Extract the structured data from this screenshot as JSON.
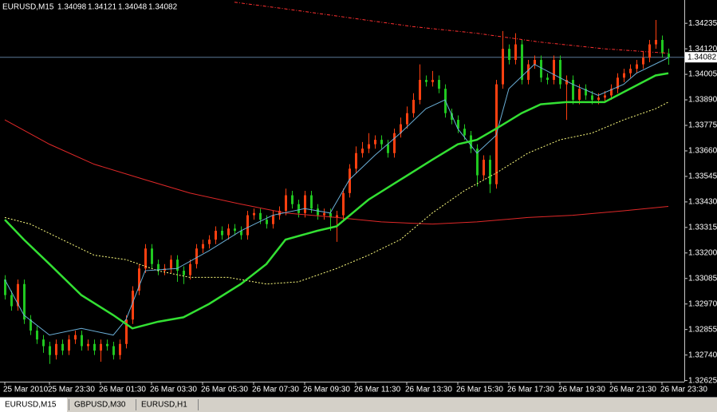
{
  "chart_data": {
    "type": "candlestick",
    "title": "EURUSD,M15",
    "categories": [
      "25 Mar 2010",
      null,
      null,
      null,
      null,
      null,
      null,
      "25 Mar 23:30",
      null,
      null,
      null,
      null,
      null,
      null,
      null,
      "26 Mar 01:30",
      null,
      null,
      null,
      null,
      null,
      null,
      null,
      "26 Mar 03:30",
      null,
      null,
      null,
      null,
      null,
      null,
      null,
      "26 Mar 05:30",
      null,
      null,
      null,
      null,
      null,
      null,
      null,
      "26 Mar 07:30",
      null,
      null,
      null,
      null,
      null,
      null,
      null,
      "26 Mar 09:30",
      null,
      null,
      null,
      null,
      null,
      null,
      null,
      "26 Mar 11:30",
      null,
      null,
      null,
      null,
      null,
      null,
      null,
      "26 Mar 13:30",
      null,
      null,
      null,
      null,
      null,
      null,
      null,
      "26 Mar 15:30",
      null,
      null,
      null,
      null,
      null,
      null,
      null,
      "26 Mar 17:30",
      null,
      null,
      null,
      null,
      null,
      null,
      null,
      "26 Mar 19:30",
      null,
      null,
      null,
      null,
      null,
      null,
      null,
      "26 Mar 21:30",
      null,
      null,
      null,
      null,
      null,
      null,
      null,
      "26 Mar 23:30",
      null
    ],
    "open": [
      1.3308,
      1.3301,
      1.3296,
      1.3306,
      1.329,
      1.3285,
      1.3281,
      1.3278,
      1.3274,
      1.3279,
      1.3276,
      1.3281,
      1.3283,
      1.3278,
      1.3279,
      1.3276,
      1.3279,
      1.3278,
      1.3274,
      1.3279,
      1.329,
      1.3303,
      1.3313,
      1.3322,
      1.3315,
      1.3312,
      1.3313,
      1.3317,
      1.3312,
      1.331,
      1.3315,
      1.3322,
      1.3324,
      1.3326,
      1.333,
      1.3328,
      1.3331,
      1.333,
      1.3328,
      1.3337,
      1.3338,
      1.3335,
      1.3333,
      1.3337,
      1.3339,
      1.3346,
      1.3342,
      1.3338,
      1.3346,
      1.334,
      1.3337,
      1.3338,
      1.3336,
      1.3337,
      1.3347,
      1.3358,
      1.3365,
      1.3367,
      1.3369,
      1.3371,
      1.3369,
      1.3365,
      1.3374,
      1.3378,
      1.3383,
      1.3389,
      1.3398,
      1.3397,
      1.3398,
      1.3394,
      1.3383,
      1.338,
      1.3376,
      1.3373,
      1.3367,
      1.3355,
      1.3362,
      1.3351,
      1.3396,
      1.3412,
      1.3407,
      1.3414,
      1.3398,
      1.3405,
      1.3407,
      1.3399,
      1.3398,
      1.3407,
      1.3396,
      1.3398,
      1.3389,
      1.3394,
      1.3391,
      1.3389,
      1.339,
      1.3391,
      1.3394,
      1.3399,
      1.3401,
      1.3403,
      1.3405,
      1.3408,
      1.3414,
      1.3416,
      1.34098
    ],
    "high": [
      1.331,
      1.3303,
      1.3308,
      1.3308,
      1.3292,
      1.3287,
      1.3283,
      1.328,
      1.3281,
      1.3281,
      1.3283,
      1.3285,
      1.3285,
      1.3281,
      1.3281,
      1.3281,
      1.3281,
      1.328,
      1.3281,
      1.3292,
      1.3305,
      1.3315,
      1.3324,
      1.3324,
      1.3317,
      1.3315,
      1.3319,
      1.3319,
      1.3314,
      1.3317,
      1.3324,
      1.3326,
      1.3328,
      1.3332,
      1.3332,
      1.3333,
      1.3333,
      1.3332,
      1.3339,
      1.334,
      1.334,
      1.3337,
      1.3339,
      1.3341,
      1.3349,
      1.3348,
      1.3344,
      1.3348,
      1.3348,
      1.3342,
      1.334,
      1.334,
      1.3339,
      1.3349,
      1.336,
      1.3368,
      1.337,
      1.3374,
      1.3373,
      1.3373,
      1.3371,
      1.3376,
      1.3381,
      1.3386,
      1.3392,
      1.3405,
      1.34,
      1.3402,
      1.34,
      1.3396,
      1.3385,
      1.3382,
      1.3378,
      1.3375,
      1.3369,
      1.3364,
      1.3364,
      1.3398,
      1.342,
      1.3414,
      1.3419,
      1.3416,
      1.3407,
      1.3409,
      1.3409,
      1.3401,
      1.3409,
      1.3409,
      1.34,
      1.34,
      1.3396,
      1.3396,
      1.3393,
      1.3392,
      1.3393,
      1.3396,
      1.3401,
      1.3403,
      1.3405,
      1.3407,
      1.3411,
      1.3416,
      1.3425,
      1.3418,
      1.34121
    ],
    "low": [
      1.3299,
      1.3294,
      1.3294,
      1.3288,
      1.3283,
      1.3279,
      1.3275,
      1.327,
      1.3272,
      1.3274,
      1.3274,
      1.3279,
      1.3276,
      1.3276,
      1.3274,
      1.3271,
      1.3276,
      1.3272,
      1.3272,
      1.3277,
      1.3288,
      1.3301,
      1.3311,
      1.3313,
      1.331,
      1.331,
      1.3311,
      1.3307,
      1.3306,
      1.3308,
      1.3313,
      1.332,
      1.3322,
      1.3324,
      1.3326,
      1.3326,
      1.3328,
      1.3326,
      1.3326,
      1.3335,
      1.3333,
      1.3331,
      1.3331,
      1.3335,
      1.3337,
      1.334,
      1.3336,
      1.3336,
      1.3338,
      1.3335,
      1.3335,
      1.333,
      1.3325,
      1.3335,
      1.3345,
      1.3356,
      1.3363,
      1.3365,
      1.3367,
      1.3367,
      1.3363,
      1.3363,
      1.3372,
      1.3376,
      1.3381,
      1.3387,
      1.3395,
      1.3395,
      1.3392,
      1.3381,
      1.3378,
      1.3374,
      1.3371,
      1.3365,
      1.335,
      1.3353,
      1.3347,
      1.3349,
      1.3394,
      1.3405,
      1.3405,
      1.3396,
      1.3396,
      1.3403,
      1.3397,
      1.3396,
      1.3396,
      1.3394,
      1.338,
      1.3387,
      1.3387,
      1.3389,
      1.3387,
      1.3387,
      1.3388,
      1.3389,
      1.3392,
      1.3397,
      1.3399,
      1.3401,
      1.3403,
      1.3406,
      1.3412,
      1.3408,
      1.34048
    ],
    "close": [
      1.3301,
      1.3296,
      1.3306,
      1.329,
      1.3285,
      1.3281,
      1.3278,
      1.3274,
      1.3279,
      1.3276,
      1.3281,
      1.3283,
      1.3278,
      1.3279,
      1.3276,
      1.3279,
      1.3278,
      1.3274,
      1.3279,
      1.329,
      1.3303,
      1.3313,
      1.3322,
      1.3315,
      1.3312,
      1.3313,
      1.3317,
      1.3312,
      1.331,
      1.3315,
      1.3322,
      1.3324,
      1.3326,
      1.333,
      1.3328,
      1.3331,
      1.333,
      1.3328,
      1.3337,
      1.3338,
      1.3335,
      1.3333,
      1.3337,
      1.3339,
      1.3346,
      1.3342,
      1.3338,
      1.3346,
      1.334,
      1.3337,
      1.3338,
      1.3336,
      1.3337,
      1.3347,
      1.3358,
      1.3365,
      1.3367,
      1.3369,
      1.3371,
      1.3369,
      1.3365,
      1.3374,
      1.3378,
      1.3383,
      1.3389,
      1.3398,
      1.3397,
      1.3398,
      1.3394,
      1.3383,
      1.338,
      1.3376,
      1.3373,
      1.3367,
      1.3355,
      1.3362,
      1.3351,
      1.3396,
      1.3412,
      1.3407,
      1.3414,
      1.3398,
      1.3405,
      1.3407,
      1.3399,
      1.3398,
      1.3407,
      1.3396,
      1.3398,
      1.3389,
      1.3394,
      1.3391,
      1.3389,
      1.339,
      1.3391,
      1.3394,
      1.3399,
      1.3401,
      1.3403,
      1.3405,
      1.3408,
      1.3414,
      1.3416,
      1.341,
      1.34082
    ],
    "up_color": "#ff4010",
    "down_color": "#20c820",
    "price_line_color": "#5a7896",
    "indicators": [
      {
        "color": "#ff3030",
        "width": 1,
        "dash": "dashdot",
        "x": [
          36,
          44,
          54,
          64,
          74,
          84,
          94,
          104
        ],
        "values": [
          1.3433,
          1.343,
          1.3426,
          1.3422,
          1.3419,
          1.3415,
          1.3412,
          1.341
        ]
      },
      {
        "color": "#e02828",
        "width": 1,
        "dash": "solid",
        "x": [
          0,
          7,
          14,
          22,
          29,
          37,
          44,
          52,
          59,
          67,
          74,
          82,
          89,
          97,
          104
        ],
        "values": [
          1.338,
          1.3369,
          1.336,
          1.3353,
          1.3347,
          1.3342,
          1.3338,
          1.3336,
          1.3334,
          1.3333,
          1.3334,
          1.3336,
          1.3337,
          1.3339,
          1.3341
        ]
      },
      {
        "color": "#ffff80",
        "width": 1,
        "dash": "dot",
        "x": [
          0,
          4,
          9,
          14,
          19,
          24,
          29,
          35,
          41,
          46,
          52,
          57,
          62,
          67,
          72,
          77,
          82,
          87,
          92,
          97,
          102,
          104
        ],
        "values": [
          1.3336,
          1.3333,
          1.3326,
          1.3319,
          1.3317,
          1.3312,
          1.3309,
          1.3309,
          1.3306,
          1.3307,
          1.3313,
          1.3319,
          1.3326,
          1.3338,
          1.3348,
          1.3356,
          1.3365,
          1.3371,
          1.3374,
          1.338,
          1.3385,
          1.3388
        ]
      },
      {
        "color": "#6aaed6",
        "width": 1,
        "dash": "solid",
        "x": [
          0,
          3,
          7,
          12,
          17,
          19,
          22,
          27,
          32,
          37,
          42,
          47,
          51,
          54,
          58,
          62,
          66,
          69,
          71,
          74,
          77,
          79,
          83,
          87,
          89,
          93,
          97,
          99,
          104
        ],
        "values": [
          1.3308,
          1.3292,
          1.3283,
          1.3286,
          1.3283,
          1.329,
          1.3312,
          1.3313,
          1.3321,
          1.333,
          1.3337,
          1.334,
          1.3338,
          1.3353,
          1.3364,
          1.3374,
          1.3385,
          1.3389,
          1.3376,
          1.3365,
          1.3373,
          1.3394,
          1.3405,
          1.3399,
          1.3396,
          1.3391,
          1.3396,
          1.3401,
          1.3408
        ]
      },
      {
        "color": "#33e033",
        "width": 2.5,
        "dash": "solid",
        "x": [
          0,
          3,
          7,
          12,
          17,
          20,
          24,
          28,
          32,
          37,
          41,
          44,
          49,
          52,
          57,
          62,
          67,
          71,
          74,
          77,
          81,
          84,
          88,
          92,
          94,
          98,
          102,
          104
        ],
        "values": [
          1.3335,
          1.3326,
          1.3315,
          1.3301,
          1.3292,
          1.3286,
          1.3289,
          1.3291,
          1.3297,
          1.3306,
          1.3315,
          1.3326,
          1.333,
          1.3332,
          1.3344,
          1.3353,
          1.3362,
          1.3369,
          1.3371,
          1.3376,
          1.3383,
          1.3387,
          1.3388,
          1.3388,
          1.3388,
          1.3394,
          1.34,
          1.3401
        ]
      }
    ],
    "ylim": [
      1.3262,
      1.3434
    ],
    "yticks": [
      1.34235,
      {
        "value": 1.3412,
        "label": "1.34120"
      },
      1.34005,
      {
        "value": 1.3389,
        "label": "1.33890"
      },
      1.33775,
      {
        "value": 1.3366,
        "label": "1.33660"
      },
      1.33545,
      {
        "value": 1.3343,
        "label": "1.33430"
      },
      1.33315,
      {
        "value": 1.332,
        "label": "1.33200"
      },
      1.33085,
      {
        "value": 1.3297,
        "label": "1.32970"
      },
      1.32855,
      {
        "value": 1.3274,
        "label": "1.32740"
      },
      1.32625
    ]
  },
  "tabs": [
    "EURUSD,M15",
    "GBPUSD,M30",
    "EURUSD,H1"
  ]
}
